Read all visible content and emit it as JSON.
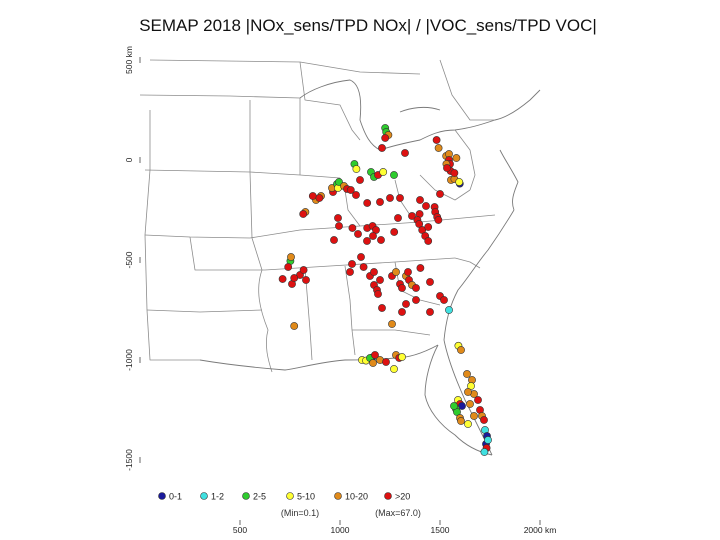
{
  "title": "SEMAP 2018 |NOx_sens/TPD NOx| / |VOC_sens/TPD VOC|",
  "y_axis_ticks": [
    {
      "value": 500,
      "label": "500 km"
    },
    {
      "value": 0,
      "label": "0"
    },
    {
      "value": -500,
      "label": "-500"
    },
    {
      "value": -1000,
      "label": "-1000"
    },
    {
      "value": -1500,
      "label": "-1500"
    }
  ],
  "x_axis_ticks": [
    {
      "value": 500,
      "label": "500"
    },
    {
      "value": 1000,
      "label": "1000"
    },
    {
      "value": 1500,
      "label": "1500"
    },
    {
      "value": 2000,
      "label": "2000 km"
    }
  ],
  "legend": [
    {
      "label": "0-1",
      "color": "#1a1a9c"
    },
    {
      "label": "1-2",
      "color": "#40e0e0"
    },
    {
      "label": "2-5",
      "color": "#2ecc2e"
    },
    {
      "label": "5-10",
      "color": "#ffff33"
    },
    {
      "label": "10-20",
      "color": "#e08a1a"
    },
    {
      "label": ">20",
      "color": "#dd1111"
    }
  ],
  "min_note": "(Min=0.1)",
  "max_note": "(Max=67.0)",
  "sites": [
    {
      "x": 1483,
      "y": 100,
      "c": 5
    },
    {
      "x": 1493,
      "y": 60,
      "c": 4
    },
    {
      "x": 1531,
      "y": 20,
      "c": 4
    },
    {
      "x": 1545,
      "y": 30,
      "c": 4
    },
    {
      "x": 1545,
      "y": 0,
      "c": 5
    },
    {
      "x": 1550,
      "y": -20,
      "c": 5
    },
    {
      "x": 1553,
      "y": -55,
      "c": 5
    },
    {
      "x": 1555,
      "y": -100,
      "c": 4
    },
    {
      "x": 1572,
      "y": -95,
      "c": 4
    },
    {
      "x": 1572,
      "y": -65,
      "c": 5
    },
    {
      "x": 1582,
      "y": 10,
      "c": 4
    },
    {
      "x": 1599,
      "y": -118,
      "c": 0
    },
    {
      "x": 1596,
      "y": -110,
      "c": 3
    },
    {
      "x": 1532,
      "y": -20,
      "c": 4
    },
    {
      "x": 1535,
      "y": -40,
      "c": 5
    },
    {
      "x": 1226,
      "y": 160,
      "c": 2
    },
    {
      "x": 1231,
      "y": 140,
      "c": 2
    },
    {
      "x": 1242,
      "y": 125,
      "c": 4
    },
    {
      "x": 1226,
      "y": 110,
      "c": 5
    },
    {
      "x": 1210,
      "y": 60,
      "c": 5
    },
    {
      "x": 1325,
      "y": 35,
      "c": 5
    },
    {
      "x": 1072,
      "y": -20,
      "c": 2
    },
    {
      "x": 1082,
      "y": -45,
      "c": 3
    },
    {
      "x": 1100,
      "y": -100,
      "c": 5
    },
    {
      "x": 1155,
      "y": -60,
      "c": 2
    },
    {
      "x": 1170,
      "y": -85,
      "c": 2
    },
    {
      "x": 1190,
      "y": -75,
      "c": 5
    },
    {
      "x": 1216,
      "y": -60,
      "c": 3
    },
    {
      "x": 1270,
      "y": -75,
      "c": 2
    },
    {
      "x": 965,
      "y": -160,
      "c": 5
    },
    {
      "x": 960,
      "y": -140,
      "c": 4
    },
    {
      "x": 985,
      "y": -120,
      "c": 2
    },
    {
      "x": 1000,
      "y": -130,
      "c": 3
    },
    {
      "x": 990,
      "y": -140,
      "c": 3
    },
    {
      "x": 995,
      "y": -110,
      "c": 2
    },
    {
      "x": 1020,
      "y": -130,
      "c": 4
    },
    {
      "x": 1035,
      "y": -145,
      "c": 5
    },
    {
      "x": 1054,
      "y": -150,
      "c": 5
    },
    {
      "x": 1080,
      "y": -175,
      "c": 5
    },
    {
      "x": 905,
      "y": -180,
      "c": 4
    },
    {
      "x": 880,
      "y": -200,
      "c": 4
    },
    {
      "x": 864,
      "y": -180,
      "c": 5
    },
    {
      "x": 897,
      "y": -190,
      "c": 5
    },
    {
      "x": 827,
      "y": -260,
      "c": 4
    },
    {
      "x": 816,
      "y": -270,
      "c": 5
    },
    {
      "x": 1136,
      "y": -215,
      "c": 5
    },
    {
      "x": 1200,
      "y": -210,
      "c": 5
    },
    {
      "x": 1250,
      "y": -190,
      "c": 5
    },
    {
      "x": 1300,
      "y": -190,
      "c": 5
    },
    {
      "x": 1400,
      "y": -200,
      "c": 5
    },
    {
      "x": 1500,
      "y": -170,
      "c": 5
    },
    {
      "x": 1430,
      "y": -230,
      "c": 5
    },
    {
      "x": 990,
      "y": -290,
      "c": 5
    },
    {
      "x": 995,
      "y": -330,
      "c": 5
    },
    {
      "x": 970,
      "y": -400,
      "c": 5
    },
    {
      "x": 1062,
      "y": -340,
      "c": 5
    },
    {
      "x": 1090,
      "y": -370,
      "c": 5
    },
    {
      "x": 1136,
      "y": -340,
      "c": 5
    },
    {
      "x": 1163,
      "y": -330,
      "c": 5
    },
    {
      "x": 1180,
      "y": -350,
      "c": 5
    },
    {
      "x": 1135,
      "y": -405,
      "c": 5
    },
    {
      "x": 1165,
      "y": -380,
      "c": 5
    },
    {
      "x": 1205,
      "y": -400,
      "c": 5
    },
    {
      "x": 1271,
      "y": -360,
      "c": 5
    },
    {
      "x": 1290,
      "y": -290,
      "c": 5
    },
    {
      "x": 1360,
      "y": -280,
      "c": 5
    },
    {
      "x": 1398,
      "y": -270,
      "c": 5
    },
    {
      "x": 1387,
      "y": -300,
      "c": 5
    },
    {
      "x": 1396,
      "y": -320,
      "c": 5
    },
    {
      "x": 1411,
      "y": -350,
      "c": 5
    },
    {
      "x": 1426,
      "y": -380,
      "c": 5
    },
    {
      "x": 1441,
      "y": -405,
      "c": 5
    },
    {
      "x": 1473,
      "y": -235,
      "c": 5
    },
    {
      "x": 1476,
      "y": -260,
      "c": 5
    },
    {
      "x": 1486,
      "y": -285,
      "c": 5
    },
    {
      "x": 1492,
      "y": -300,
      "c": 5
    },
    {
      "x": 1441,
      "y": -335,
      "c": 5
    },
    {
      "x": 752,
      "y": -505,
      "c": 2
    },
    {
      "x": 755,
      "y": -485,
      "c": 4
    },
    {
      "x": 741,
      "y": -535,
      "c": 5
    },
    {
      "x": 713,
      "y": -595,
      "c": 5
    },
    {
      "x": 760,
      "y": -620,
      "c": 5
    },
    {
      "x": 800,
      "y": -575,
      "c": 5
    },
    {
      "x": 818,
      "y": -550,
      "c": 5
    },
    {
      "x": 830,
      "y": -600,
      "c": 5
    },
    {
      "x": 1050,
      "y": -560,
      "c": 5
    },
    {
      "x": 1060,
      "y": -520,
      "c": 5
    },
    {
      "x": 1105,
      "y": -485,
      "c": 5
    },
    {
      "x": 1118,
      "y": -535,
      "c": 5
    },
    {
      "x": 1150,
      "y": -580,
      "c": 5
    },
    {
      "x": 1170,
      "y": -560,
      "c": 5
    },
    {
      "x": 1170,
      "y": -625,
      "c": 5
    },
    {
      "x": 1185,
      "y": -650,
      "c": 5
    },
    {
      "x": 1200,
      "y": -600,
      "c": 5
    },
    {
      "x": 1190,
      "y": -670,
      "c": 5
    },
    {
      "x": 1260,
      "y": -580,
      "c": 5
    },
    {
      "x": 1280,
      "y": -560,
      "c": 4
    },
    {
      "x": 1300,
      "y": -620,
      "c": 5
    },
    {
      "x": 1310,
      "y": -640,
      "c": 5
    },
    {
      "x": 1330,
      "y": -580,
      "c": 4
    },
    {
      "x": 1345,
      "y": -600,
      "c": 5
    },
    {
      "x": 1360,
      "y": -625,
      "c": 4
    },
    {
      "x": 1380,
      "y": -640,
      "c": 5
    },
    {
      "x": 1402,
      "y": -540,
      "c": 5
    },
    {
      "x": 1340,
      "y": -560,
      "c": 5
    },
    {
      "x": 1210,
      "y": -740,
      "c": 5
    },
    {
      "x": 1310,
      "y": -760,
      "c": 5
    },
    {
      "x": 1330,
      "y": -720,
      "c": 5
    },
    {
      "x": 1380,
      "y": -700,
      "c": 5
    },
    {
      "x": 1260,
      "y": -820,
      "c": 4
    },
    {
      "x": 1450,
      "y": -610,
      "c": 5
    },
    {
      "x": 1545,
      "y": -750,
      "c": 1
    },
    {
      "x": 1500,
      "y": -680,
      "c": 5
    },
    {
      "x": 1520,
      "y": -700,
      "c": 5
    },
    {
      "x": 1450,
      "y": -760,
      "c": 5
    },
    {
      "x": 771,
      "y": -590,
      "c": 5
    },
    {
      "x": 771,
      "y": -830,
      "c": 4
    },
    {
      "x": 1592,
      "y": -929,
      "c": 3
    },
    {
      "x": 1605,
      "y": -950,
      "c": 4
    },
    {
      "x": 1635,
      "y": -1070,
      "c": 4
    },
    {
      "x": 1660,
      "y": -1100,
      "c": 4
    },
    {
      "x": 1655,
      "y": -1130,
      "c": 3
    },
    {
      "x": 1670,
      "y": -1170,
      "c": 4
    },
    {
      "x": 1690,
      "y": -1200,
      "c": 5
    },
    {
      "x": 1700,
      "y": -1250,
      "c": 5
    },
    {
      "x": 1710,
      "y": -1280,
      "c": 4
    },
    {
      "x": 1720,
      "y": -1300,
      "c": 5
    },
    {
      "x": 1725,
      "y": -1350,
      "c": 1
    },
    {
      "x": 1735,
      "y": -1380,
      "c": 0
    },
    {
      "x": 1730,
      "y": -1420,
      "c": 0
    },
    {
      "x": 1740,
      "y": -1400,
      "c": 1
    },
    {
      "x": 1733,
      "y": -1440,
      "c": 5
    },
    {
      "x": 1722,
      "y": -1460,
      "c": 1
    },
    {
      "x": 1590,
      "y": -1200,
      "c": 3
    },
    {
      "x": 1600,
      "y": -1220,
      "c": 5
    },
    {
      "x": 1610,
      "y": -1230,
      "c": 0
    },
    {
      "x": 1580,
      "y": -1245,
      "c": 2
    },
    {
      "x": 1585,
      "y": -1260,
      "c": 2
    },
    {
      "x": 1570,
      "y": -1230,
      "c": 2
    },
    {
      "x": 1600,
      "y": -1290,
      "c": 4
    },
    {
      "x": 1605,
      "y": -1305,
      "c": 4
    },
    {
      "x": 1640,
      "y": -1320,
      "c": 3
    },
    {
      "x": 1650,
      "y": -1220,
      "c": 4
    },
    {
      "x": 1670,
      "y": -1280,
      "c": 4
    },
    {
      "x": 1640,
      "y": -1160,
      "c": 4
    },
    {
      "x": 1160,
      "y": -988,
      "c": 0
    },
    {
      "x": 1110,
      "y": -1000,
      "c": 3
    },
    {
      "x": 1130,
      "y": -1003,
      "c": 3
    },
    {
      "x": 1150,
      "y": -990,
      "c": 2
    },
    {
      "x": 1175,
      "y": -975,
      "c": 5
    },
    {
      "x": 1165,
      "y": -1015,
      "c": 4
    },
    {
      "x": 1200,
      "y": -1000,
      "c": 4
    },
    {
      "x": 1230,
      "y": -1010,
      "c": 5
    },
    {
      "x": 1280,
      "y": -975,
      "c": 4
    },
    {
      "x": 1296,
      "y": -990,
      "c": 5
    },
    {
      "x": 1310,
      "y": -985,
      "c": 3
    },
    {
      "x": 1270,
      "y": -1045,
      "c": 3
    }
  ]
}
